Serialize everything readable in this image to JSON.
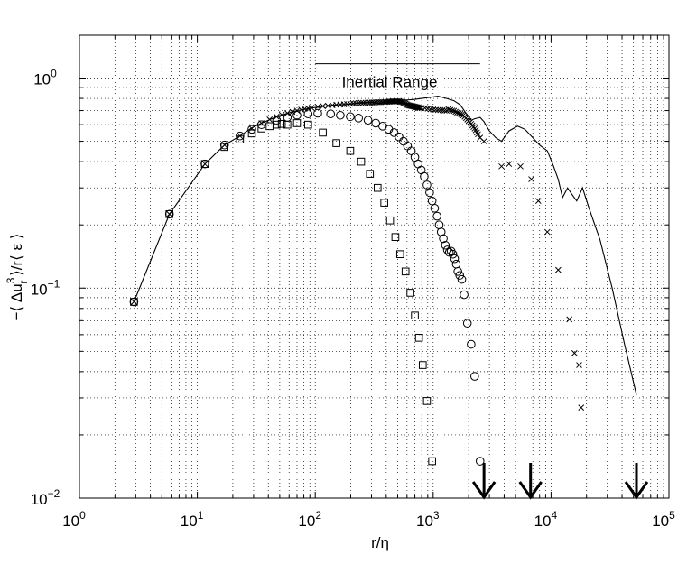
{
  "chart_data": {
    "type": "scatter",
    "xlabel": "r/η",
    "ylabel_parts": [
      "−⟨ Δu",
      "3",
      "r",
      " ⟩/r⟨ ε ⟩"
    ],
    "xscale": "log",
    "yscale": "log",
    "xlim": [
      1,
      100000
    ],
    "ylim": [
      0.01,
      1.6
    ],
    "grid": true,
    "x_ticks": [
      {
        "base": "10",
        "exp": "0"
      },
      {
        "base": "10",
        "exp": "1"
      },
      {
        "base": "10",
        "exp": "2"
      },
      {
        "base": "10",
        "exp": "3"
      },
      {
        "base": "10",
        "exp": "4"
      },
      {
        "base": "10",
        "exp": "5"
      }
    ],
    "y_ticks": [
      {
        "base": "10",
        "exp": "−2"
      },
      {
        "base": "10",
        "exp": "−1"
      },
      {
        "base": "10",
        "exp": "0"
      }
    ],
    "annotation": {
      "text": "Inertial Range",
      "x_start": 100,
      "x_end": 2500,
      "y": 1.17
    },
    "arrows_x": [
      2700,
      6700,
      53000
    ],
    "series": [
      {
        "marker": "line",
        "x": [
          2.9,
          5.8,
          11.6,
          17,
          23,
          29,
          35,
          47,
          58,
          70,
          93,
          120,
          150,
          190,
          235,
          290,
          350,
          410,
          470,
          560,
          680,
          800,
          950,
          1100,
          1300,
          1500,
          1700,
          1900,
          2100,
          2250,
          2500,
          2700,
          3000,
          3400,
          3800,
          4400,
          5200,
          6000,
          7000,
          8000,
          9300,
          10500,
          11500,
          12500,
          13800,
          15000,
          16500,
          18500,
          21000,
          26000,
          33000,
          42000,
          53000
        ],
        "values": [
          0.086,
          0.225,
          0.39,
          0.48,
          0.53,
          0.58,
          0.61,
          0.655,
          0.68,
          0.7,
          0.72,
          0.735,
          0.745,
          0.75,
          0.76,
          0.765,
          0.76,
          0.77,
          0.78,
          0.785,
          0.79,
          0.8,
          0.81,
          0.82,
          0.8,
          0.78,
          0.745,
          0.68,
          0.63,
          0.64,
          0.65,
          0.62,
          0.56,
          0.52,
          0.5,
          0.56,
          0.59,
          0.57,
          0.52,
          0.48,
          0.45,
          0.38,
          0.33,
          0.27,
          0.3,
          0.28,
          0.26,
          0.3,
          0.24,
          0.17,
          0.1,
          0.054,
          0.031
        ]
      },
      {
        "marker": "x",
        "x": [
          2.9,
          5.8,
          11.6,
          17,
          23,
          29,
          35,
          41,
          47,
          52,
          58,
          64,
          70,
          76,
          81,
          87,
          93,
          105,
          116,
          128,
          140,
          151,
          163,
          175,
          186,
          198,
          210,
          221,
          233,
          245,
          256,
          268,
          280,
          291,
          303,
          315,
          326,
          338,
          350,
          361,
          373,
          385,
          396,
          408,
          420,
          431,
          443,
          455,
          466,
          478,
          490,
          501,
          513,
          525,
          536,
          548,
          560,
          571,
          583,
          595,
          606,
          618,
          630,
          641,
          653,
          665,
          676,
          688,
          700,
          711,
          723,
          735,
          746,
          758,
          770,
          800,
          850,
          900,
          950,
          1000,
          1050,
          1100,
          1150,
          1200,
          1250,
          1300,
          1350,
          1400,
          1450,
          1500,
          1550,
          1600,
          1650,
          1700,
          1750,
          1800,
          1850,
          1900,
          1950,
          2000,
          2050,
          2100,
          2150,
          2200,
          2250,
          2300,
          2350,
          2400,
          2500,
          2700,
          3800,
          4400,
          5500,
          6800,
          7800,
          9300,
          11500,
          14300,
          15800,
          17300,
          18000
        ],
        "values": [
          0.086,
          0.225,
          0.39,
          0.48,
          0.53,
          0.575,
          0.61,
          0.635,
          0.655,
          0.668,
          0.68,
          0.69,
          0.7,
          0.707,
          0.713,
          0.718,
          0.722,
          0.73,
          0.735,
          0.738,
          0.742,
          0.745,
          0.748,
          0.75,
          0.752,
          0.754,
          0.756,
          0.758,
          0.76,
          0.762,
          0.762,
          0.763,
          0.764,
          0.764,
          0.765,
          0.765,
          0.766,
          0.767,
          0.767,
          0.768,
          0.768,
          0.77,
          0.77,
          0.771,
          0.772,
          0.772,
          0.773,
          0.774,
          0.774,
          0.775,
          0.776,
          0.775,
          0.774,
          0.772,
          0.77,
          0.768,
          0.765,
          0.76,
          0.755,
          0.75,
          0.745,
          0.742,
          0.74,
          0.738,
          0.737,
          0.735,
          0.734,
          0.732,
          0.73,
          0.728,
          0.727,
          0.725,
          0.723,
          0.722,
          0.72,
          0.72,
          0.72,
          0.715,
          0.71,
          0.708,
          0.706,
          0.705,
          0.704,
          0.703,
          0.7,
          0.7,
          0.71,
          0.705,
          0.7,
          0.698,
          0.69,
          0.685,
          0.68,
          0.675,
          0.67,
          0.665,
          0.655,
          0.645,
          0.635,
          0.625,
          0.615,
          0.605,
          0.595,
          0.585,
          0.575,
          0.565,
          0.55,
          0.54,
          0.52,
          0.5,
          0.38,
          0.39,
          0.38,
          0.33,
          0.26,
          0.185,
          0.122,
          0.071,
          0.049,
          0.043,
          0.027
        ]
      },
      {
        "marker": "o",
        "x": [
          2.9,
          5.8,
          11.6,
          17,
          23,
          29,
          35,
          47,
          58,
          70,
          87,
          105,
          135,
          163,
          198,
          233,
          280,
          326,
          373,
          420,
          466,
          513,
          560,
          606,
          653,
          700,
          746,
          793,
          840,
          886,
          933,
          980,
          1030,
          1080,
          1125,
          1170,
          1220,
          1270,
          1320,
          1370,
          1420,
          1470,
          1520,
          1570,
          1620,
          1680,
          1750,
          1830,
          1950,
          2100,
          2250,
          2500
        ],
        "values": [
          0.086,
          0.225,
          0.39,
          0.48,
          0.53,
          0.57,
          0.6,
          0.63,
          0.65,
          0.665,
          0.675,
          0.68,
          0.675,
          0.665,
          0.655,
          0.645,
          0.63,
          0.61,
          0.59,
          0.57,
          0.55,
          0.525,
          0.5,
          0.475,
          0.45,
          0.42,
          0.39,
          0.365,
          0.34,
          0.31,
          0.285,
          0.26,
          0.24,
          0.22,
          0.2,
          0.185,
          0.172,
          0.16,
          0.152,
          0.148,
          0.15,
          0.145,
          0.138,
          0.13,
          0.12,
          0.115,
          0.11,
          0.093,
          0.068,
          0.054,
          0.038,
          0.015
        ]
      },
      {
        "marker": "square",
        "x": [
          2.9,
          5.8,
          11.6,
          17,
          23,
          29,
          35,
          41,
          47,
          52,
          58,
          70,
          87,
          116,
          151,
          198,
          245,
          291,
          338,
          385,
          431,
          478,
          525,
          583,
          641,
          700,
          758,
          816,
          886,
          980
        ],
        "values": [
          0.086,
          0.225,
          0.39,
          0.47,
          0.51,
          0.545,
          0.575,
          0.59,
          0.6,
          0.605,
          0.6,
          0.61,
          0.6,
          0.55,
          0.49,
          0.45,
          0.4,
          0.35,
          0.3,
          0.255,
          0.21,
          0.175,
          0.145,
          0.12,
          0.095,
          0.074,
          0.058,
          0.043,
          0.029,
          0.015
        ]
      }
    ]
  }
}
